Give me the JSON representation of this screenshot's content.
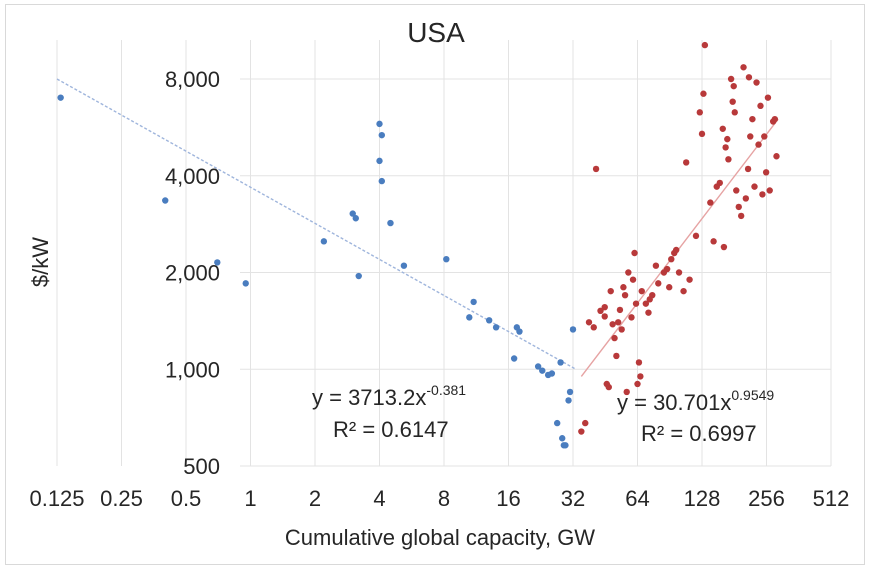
{
  "chart_data": {
    "type": "scatter",
    "title": "USA",
    "xlabel": "Cumulative global capacity, GW",
    "ylabel": "$/kW",
    "x_scale": "log2",
    "y_scale": "log2",
    "xlim": [
      0.09,
      600
    ],
    "ylim": [
      450,
      11000
    ],
    "grid": "vertical and horizontal gridlines at tick positions",
    "x_ticks": [
      {
        "value": 0.125,
        "label": "0.125"
      },
      {
        "value": 0.25,
        "label": "0.25"
      },
      {
        "value": 0.5,
        "label": "0.5"
      },
      {
        "value": 1,
        "label": "1"
      },
      {
        "value": 2,
        "label": "2"
      },
      {
        "value": 4,
        "label": "4"
      },
      {
        "value": 8,
        "label": "8"
      },
      {
        "value": 16,
        "label": "16"
      },
      {
        "value": 32,
        "label": "32"
      },
      {
        "value": 64,
        "label": "64"
      },
      {
        "value": 128,
        "label": "128"
      },
      {
        "value": 256,
        "label": "256"
      },
      {
        "value": 512,
        "label": "512"
      }
    ],
    "y_ticks": [
      {
        "value": 500,
        "label": "500"
      },
      {
        "value": 1000,
        "label": "1,000"
      },
      {
        "value": 2000,
        "label": "2,000"
      },
      {
        "value": 4000,
        "label": "4,000"
      },
      {
        "value": 8000,
        "label": "8,000"
      }
    ],
    "series": [
      {
        "color": "#4a7dbf",
        "points": [
          [
            0.13,
            7000
          ],
          [
            0.4,
            3350
          ],
          [
            0.7,
            2150
          ],
          [
            0.95,
            1850
          ],
          [
            2.2,
            2500
          ],
          [
            3.0,
            3050
          ],
          [
            3.1,
            2950
          ],
          [
            3.2,
            1950
          ],
          [
            4.0,
            5800
          ],
          [
            4.1,
            5350
          ],
          [
            4.0,
            4450
          ],
          [
            4.1,
            3850
          ],
          [
            4.5,
            2850
          ],
          [
            5.2,
            2100
          ],
          [
            8.2,
            2200
          ],
          [
            10.5,
            1450
          ],
          [
            11.0,
            1620
          ],
          [
            13.0,
            1420
          ],
          [
            14.0,
            1350
          ],
          [
            17.5,
            1350
          ],
          [
            18.0,
            1310
          ],
          [
            17.0,
            1080
          ],
          [
            22.0,
            1020
          ],
          [
            23.0,
            990
          ],
          [
            24.5,
            960
          ],
          [
            25.5,
            970
          ],
          [
            28.0,
            1050
          ],
          [
            28.5,
            610
          ],
          [
            29.0,
            580
          ],
          [
            29.5,
            580
          ],
          [
            27.0,
            680
          ],
          [
            30.5,
            800
          ],
          [
            31.0,
            850
          ],
          [
            32.0,
            1330
          ]
        ],
        "trendline": {
          "x": [
            0.125,
            33
          ],
          "y": [
            8000,
            1000
          ]
        },
        "equation": {
          "base": "y = 3713.2x",
          "exponent": "-0.381",
          "r2": "R² = 0.6147"
        }
      },
      {
        "color": "#b8393a",
        "points": [
          [
            35,
            640
          ],
          [
            36.5,
            680
          ],
          [
            38,
            1400
          ],
          [
            40,
            1350
          ],
          [
            41,
            4200
          ],
          [
            43,
            1520
          ],
          [
            45,
            1460
          ],
          [
            45,
            1560
          ],
          [
            46,
            900
          ],
          [
            47,
            880
          ],
          [
            48,
            1750
          ],
          [
            49,
            1380
          ],
          [
            50,
            1250
          ],
          [
            51,
            1100
          ],
          [
            52,
            1400
          ],
          [
            53,
            1530
          ],
          [
            54,
            1330
          ],
          [
            55,
            1800
          ],
          [
            56,
            1700
          ],
          [
            57,
            850
          ],
          [
            58,
            2000
          ],
          [
            60,
            1450
          ],
          [
            61,
            1900
          ],
          [
            62,
            2300
          ],
          [
            63,
            1600
          ],
          [
            64,
            900
          ],
          [
            65,
            1050
          ],
          [
            66,
            950
          ],
          [
            67,
            1750
          ],
          [
            70,
            1600
          ],
          [
            72,
            1500
          ],
          [
            73,
            1650
          ],
          [
            75,
            1700
          ],
          [
            78,
            2100
          ],
          [
            80,
            1850
          ],
          [
            85,
            2000
          ],
          [
            88,
            2050
          ],
          [
            90,
            1800
          ],
          [
            92,
            2200
          ],
          [
            95,
            2300
          ],
          [
            97,
            2350
          ],
          [
            100,
            2000
          ],
          [
            105,
            1750
          ],
          [
            108,
            4400
          ],
          [
            112,
            1900
          ],
          [
            120,
            2600
          ],
          [
            125,
            6300
          ],
          [
            128,
            5400
          ],
          [
            130,
            7200
          ],
          [
            132,
            10200
          ],
          [
            140,
            3300
          ],
          [
            145,
            2500
          ],
          [
            150,
            3700
          ],
          [
            155,
            3800
          ],
          [
            160,
            5600
          ],
          [
            162,
            2400
          ],
          [
            165,
            4900
          ],
          [
            168,
            5200
          ],
          [
            170,
            4500
          ],
          [
            175,
            8000
          ],
          [
            178,
            6800
          ],
          [
            180,
            7600
          ],
          [
            182,
            6300
          ],
          [
            185,
            3600
          ],
          [
            190,
            3200
          ],
          [
            195,
            3000
          ],
          [
            200,
            8700
          ],
          [
            205,
            3400
          ],
          [
            210,
            4200
          ],
          [
            212,
            8100
          ],
          [
            215,
            5300
          ],
          [
            220,
            6000
          ],
          [
            225,
            3700
          ],
          [
            230,
            7800
          ],
          [
            235,
            5000
          ],
          [
            240,
            6600
          ],
          [
            245,
            3500
          ],
          [
            250,
            5300
          ],
          [
            255,
            4100
          ],
          [
            260,
            7000
          ],
          [
            265,
            3600
          ],
          [
            275,
            5900
          ],
          [
            280,
            6000
          ],
          [
            285,
            4600
          ]
        ],
        "trendline": {
          "x": [
            35,
            290
          ],
          "y": [
            950,
            6000
          ]
        },
        "equation": {
          "base": "y = 30.701x",
          "exponent": "0.9549",
          "r2": "R² = 0.6997"
        }
      }
    ]
  }
}
